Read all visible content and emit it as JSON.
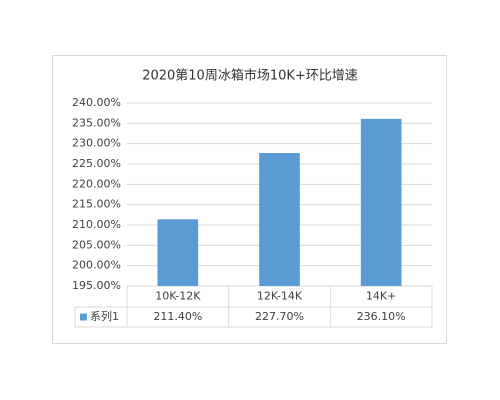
{
  "chart_data": {
    "type": "bar",
    "title": "2020第10周冰箱市场10K+环比增速",
    "categories": [
      "10K-12K",
      "12K-14K",
      "14K+"
    ],
    "series": [
      {
        "name": "系列1",
        "color": "#5b9bd5",
        "values": [
          211.4,
          227.7,
          236.1
        ],
        "value_labels": [
          "211.40%",
          "227.70%",
          "236.10%"
        ]
      }
    ],
    "ylim": [
      195,
      240
    ],
    "yticks": [
      {
        "value": 195,
        "label": "195.00%"
      },
      {
        "value": 200,
        "label": "200.00%"
      },
      {
        "value": 205,
        "label": "205.00%"
      },
      {
        "value": 210,
        "label": "210.00%"
      },
      {
        "value": 215,
        "label": "215.00%"
      },
      {
        "value": 220,
        "label": "220.00%"
      },
      {
        "value": 225,
        "label": "225.00%"
      },
      {
        "value": 230,
        "label": "230.00%"
      },
      {
        "value": 235,
        "label": "235.00%"
      },
      {
        "value": 240,
        "label": "240.00%"
      }
    ],
    "grid": true
  }
}
